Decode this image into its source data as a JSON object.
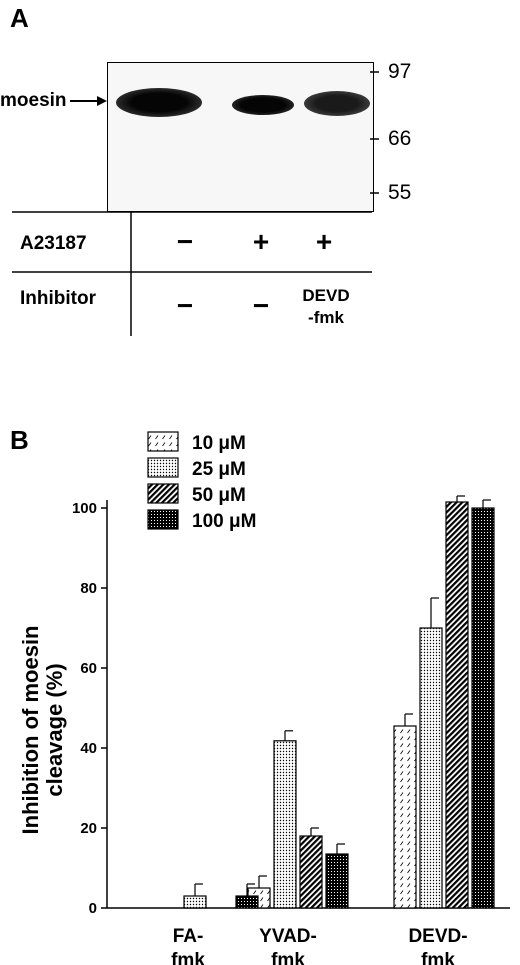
{
  "panel_a": {
    "letter": "A",
    "band_label": "moesin",
    "mw_markers": [
      "97",
      "66",
      "55"
    ],
    "rows": [
      {
        "label": "A23187",
        "values": [
          "−",
          "+",
          "+"
        ]
      },
      {
        "label": "Inhibitor",
        "values": [
          "−",
          "−",
          "DEVD\n-fmk"
        ]
      }
    ]
  },
  "panel_b": {
    "letter": "B",
    "legend": [
      "10 μM",
      "25 μM",
      "50 μM",
      "100 μM"
    ]
  },
  "chart_data": {
    "type": "bar",
    "title": "",
    "xlabel": "",
    "ylabel": "Inhibition of moesin cleavage (%)",
    "ylim": [
      0,
      105
    ],
    "yticks": [
      0,
      20,
      40,
      60,
      80,
      100
    ],
    "categories": [
      "FA-fmk",
      "YVAD-fmk",
      "DEVD-fmk"
    ],
    "legend_position": "top-left",
    "series": [
      {
        "name": "10 μM",
        "pattern": "sparse-dash",
        "values": [
          null,
          5,
          45.5
        ],
        "errors": [
          null,
          3,
          3
        ]
      },
      {
        "name": "25 μM",
        "pattern": "dots",
        "values": [
          3,
          41.8,
          70
        ],
        "errors": [
          3,
          2.5,
          7.5
        ]
      },
      {
        "name": "50 μM",
        "pattern": "dense-diagonal",
        "values": [
          null,
          18,
          101.5
        ],
        "errors": [
          null,
          2,
          1.5
        ]
      },
      {
        "name": "100 μM",
        "pattern": "crosshatch",
        "values": [
          3,
          13.5,
          100
        ],
        "errors": [
          3,
          2.5,
          2
        ]
      }
    ]
  }
}
